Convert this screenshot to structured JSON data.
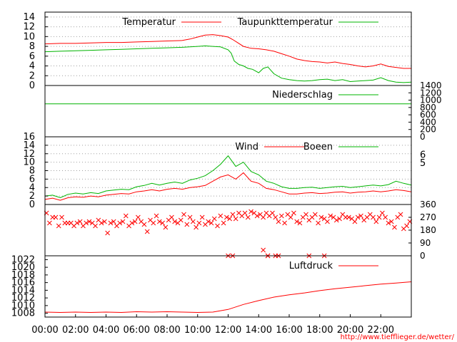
{
  "source_url": "http://www.tiefflieger.de/wetter/",
  "colors": {
    "red": "#ff0000",
    "green": "#00b400",
    "grid": "#a0a0a0",
    "frame": "#000000"
  },
  "chart_data": [
    {
      "type": "line",
      "panel": "temperature",
      "yticks": [
        "0",
        "2",
        "4",
        "6",
        "8",
        "10",
        "12",
        "14"
      ],
      "ylim": [
        0,
        15
      ],
      "grid": true,
      "legend_position": "top-right",
      "series": [
        {
          "name": "Temperatur",
          "color": "#ff0000",
          "x": [
            0,
            1,
            2,
            3,
            4,
            5,
            6,
            7,
            8,
            9,
            9.5,
            10,
            10.5,
            11,
            11.5,
            12,
            12.3,
            12.6,
            13,
            13.5,
            14,
            14.5,
            15,
            15.5,
            16,
            16.5,
            17,
            17.5,
            18,
            18.5,
            19,
            19.5,
            20,
            20.5,
            21,
            21.5,
            22,
            22.5,
            23,
            23.5,
            24
          ],
          "values": [
            8.5,
            8.6,
            8.6,
            8.7,
            8.8,
            8.8,
            8.9,
            9.0,
            9.1,
            9.2,
            9.5,
            9.9,
            10.3,
            10.4,
            10.2,
            9.9,
            9.4,
            8.8,
            8.0,
            7.6,
            7.5,
            7.3,
            7.0,
            6.5,
            6.0,
            5.4,
            5.1,
            4.9,
            4.8,
            4.6,
            4.8,
            4.5,
            4.3,
            4.0,
            3.8,
            4.0,
            4.4,
            3.9,
            3.7,
            3.5,
            3.5
          ]
        },
        {
          "name": "Taupunkttemperatur",
          "color": "#00b400",
          "x": [
            0,
            1,
            2,
            3,
            4,
            5,
            6,
            7,
            8,
            9,
            9.5,
            10,
            10.5,
            11,
            11.5,
            12,
            12.2,
            12.4,
            12.7,
            13,
            13.3,
            13.6,
            14,
            14.3,
            14.6,
            15,
            15.5,
            16,
            16.5,
            17,
            17.5,
            18,
            18.5,
            19,
            19.5,
            20,
            20.5,
            21,
            21.5,
            22,
            22.5,
            23,
            23.5,
            24
          ],
          "values": [
            6.9,
            7.0,
            7.1,
            7.2,
            7.3,
            7.4,
            7.5,
            7.6,
            7.7,
            7.8,
            7.9,
            8.0,
            8.1,
            8.0,
            7.9,
            7.3,
            6.6,
            5.0,
            4.3,
            4.0,
            3.5,
            3.3,
            2.6,
            3.5,
            3.8,
            2.4,
            1.5,
            1.2,
            1.0,
            0.9,
            1.0,
            1.2,
            1.3,
            1.0,
            1.2,
            0.8,
            0.9,
            1.0,
            1.1,
            1.6,
            1.0,
            0.7,
            0.6,
            0.7
          ]
        }
      ]
    },
    {
      "type": "line",
      "panel": "precipitation",
      "yticks": [
        "0",
        "200",
        "400",
        "600",
        "800",
        "1000",
        "1200",
        "1400"
      ],
      "ylim": [
        0,
        1400
      ],
      "grid": false,
      "legend_position": "top-right",
      "series": [
        {
          "name": "Niederschlag",
          "color": "#00b400",
          "x": [
            0,
            24
          ],
          "values": [
            900,
            900
          ]
        }
      ]
    },
    {
      "type": "line",
      "panel": "wind",
      "yticks": [
        "0",
        "2",
        "4",
        "6",
        "8",
        "10",
        "12",
        "14",
        "16"
      ],
      "ylim": [
        0,
        16
      ],
      "right_yticks": [
        "5",
        "6"
      ],
      "grid": true,
      "legend_position": "top-right",
      "series": [
        {
          "name": "Wind",
          "color": "#ff0000",
          "x": [
            0,
            0.5,
            1,
            1.5,
            2,
            2.5,
            3,
            3.5,
            4,
            4.5,
            5,
            5.5,
            6,
            6.5,
            7,
            7.5,
            8,
            8.5,
            9,
            9.5,
            10,
            10.5,
            11,
            11.5,
            12,
            12.5,
            13,
            13.5,
            14,
            14.5,
            15,
            15.5,
            16,
            16.5,
            17,
            17.5,
            18,
            18.5,
            19,
            19.5,
            20,
            20.5,
            21,
            21.5,
            22,
            22.5,
            23,
            23.5,
            24
          ],
          "values": [
            1.2,
            1.5,
            1.0,
            1.6,
            1.8,
            1.7,
            2.0,
            1.8,
            2.2,
            2.4,
            2.6,
            2.5,
            3.0,
            3.2,
            3.5,
            3.2,
            3.6,
            3.8,
            3.6,
            4.0,
            4.2,
            4.5,
            5.5,
            6.5,
            7.0,
            6.0,
            7.5,
            5.5,
            5.0,
            3.8,
            3.5,
            3.0,
            2.5,
            2.5,
            2.7,
            2.8,
            2.6,
            2.7,
            2.9,
            3.0,
            2.7,
            2.9,
            3.0,
            3.2,
            3.0,
            3.2,
            3.5,
            3.3,
            3.0
          ]
        },
        {
          "name": "Boeen",
          "color": "#00b400",
          "x": [
            0,
            0.5,
            1,
            1.5,
            2,
            2.5,
            3,
            3.5,
            4,
            4.5,
            5,
            5.5,
            6,
            6.5,
            7,
            7.5,
            8,
            8.5,
            9,
            9.5,
            10,
            10.5,
            11,
            11.5,
            12,
            12.5,
            13,
            13.5,
            14,
            14.5,
            15,
            15.5,
            16,
            16.5,
            17,
            17.5,
            18,
            18.5,
            19,
            19.5,
            20,
            20.5,
            21,
            21.5,
            22,
            22.5,
            23,
            23.5,
            24
          ],
          "values": [
            2.0,
            2.2,
            1.6,
            2.4,
            2.7,
            2.5,
            2.8,
            2.6,
            3.2,
            3.4,
            3.6,
            3.5,
            4.2,
            4.5,
            5.0,
            4.6,
            5.0,
            5.3,
            5.0,
            5.8,
            6.2,
            6.8,
            8.0,
            9.5,
            11.5,
            9.0,
            10.0,
            7.8,
            7.0,
            5.5,
            5.0,
            4.2,
            3.8,
            3.8,
            4.0,
            4.1,
            3.8,
            4.0,
            4.2,
            4.3,
            4.0,
            4.2,
            4.4,
            4.6,
            4.4,
            4.7,
            5.5,
            5.0,
            4.6
          ]
        }
      ]
    },
    {
      "type": "scatter",
      "panel": "wind_direction",
      "yticks": [
        "0",
        "90",
        "180",
        "270",
        "360"
      ],
      "ylim": [
        0,
        360
      ],
      "grid": false,
      "series": [
        {
          "name": "",
          "color": "#ff0000",
          "marker": "x",
          "x": [
            0.1,
            0.3,
            0.5,
            0.7,
            0.9,
            1.1,
            1.3,
            1.5,
            1.7,
            1.9,
            2.1,
            2.3,
            2.5,
            2.7,
            2.9,
            3.1,
            3.3,
            3.5,
            3.7,
            3.9,
            4.1,
            4.3,
            4.5,
            4.7,
            4.9,
            5.1,
            5.3,
            5.5,
            5.7,
            5.9,
            6.1,
            6.3,
            6.5,
            6.7,
            6.9,
            7.1,
            7.3,
            7.5,
            7.7,
            7.9,
            8.1,
            8.3,
            8.5,
            8.7,
            8.9,
            9.1,
            9.3,
            9.5,
            9.7,
            9.9,
            10.1,
            10.3,
            10.5,
            10.7,
            10.9,
            11.1,
            11.3,
            11.5,
            11.7,
            11.9,
            12.1,
            12.3,
            12.5,
            12.7,
            12.9,
            13.1,
            13.3,
            13.5,
            13.7,
            13.9,
            14.1,
            14.3,
            14.5,
            14.7,
            14.9,
            15.1,
            15.3,
            15.5,
            15.7,
            15.9,
            16.1,
            16.3,
            16.5,
            16.7,
            16.9,
            17.1,
            17.3,
            17.5,
            17.7,
            17.9,
            18.1,
            18.3,
            18.5,
            18.7,
            18.9,
            19.1,
            19.3,
            19.5,
            19.7,
            19.9,
            20.1,
            20.3,
            20.5,
            20.7,
            20.9,
            21.1,
            21.3,
            21.5,
            21.7,
            21.9,
            22.1,
            22.3,
            22.5,
            22.7,
            22.9,
            23.1,
            23.3,
            23.5,
            23.7,
            23.9,
            12.0,
            12.3,
            14.3,
            14.6,
            15.1,
            15.3,
            17.3,
            18.3,
            14.6
          ],
          "values": [
            300,
            230,
            270,
            270,
            210,
            270,
            230,
            230,
            230,
            210,
            230,
            240,
            210,
            230,
            240,
            230,
            210,
            250,
            230,
            240,
            160,
            230,
            240,
            210,
            230,
            240,
            280,
            210,
            230,
            240,
            270,
            240,
            220,
            170,
            250,
            230,
            280,
            240,
            230,
            200,
            250,
            270,
            240,
            230,
            250,
            290,
            220,
            270,
            240,
            200,
            230,
            270,
            220,
            240,
            230,
            260,
            210,
            280,
            230,
            270,
            260,
            290,
            260,
            300,
            280,
            300,
            270,
            310,
            300,
            280,
            290,
            270,
            300,
            280,
            300,
            270,
            240,
            280,
            230,
            290,
            270,
            300,
            240,
            230,
            270,
            290,
            250,
            270,
            290,
            230,
            270,
            260,
            240,
            280,
            270,
            250,
            260,
            290,
            270,
            270,
            260,
            240,
            270,
            280,
            250,
            270,
            290,
            270,
            240,
            270,
            300,
            270,
            230,
            240,
            200,
            270,
            290,
            190,
            210,
            240,
            0,
            0,
            40,
            0,
            0,
            0,
            0,
            0,
            0
          ]
        }
      ]
    },
    {
      "type": "line",
      "panel": "pressure",
      "yticks": [
        "1008",
        "1010",
        "1012",
        "1014",
        "1016",
        "1018",
        "1020",
        "1022"
      ],
      "ylim": [
        1007,
        1023
      ],
      "grid": false,
      "legend_position": "top-right",
      "xticks": [
        "00:00",
        "02:00",
        "04:00",
        "06:00",
        "08:00",
        "10:00",
        "12:00",
        "14:00",
        "16:00",
        "18:00",
        "20:00",
        "22:00"
      ],
      "xlim": [
        0,
        24
      ],
      "series": [
        {
          "name": "Luftdruck",
          "color": "#ff0000",
          "x": [
            0,
            1,
            2,
            3,
            4,
            5,
            6,
            7,
            8,
            9,
            10,
            11,
            12,
            13,
            14,
            15,
            16,
            17,
            18,
            19,
            20,
            21,
            22,
            23,
            24
          ],
          "values": [
            1008.3,
            1008.2,
            1008.3,
            1008.2,
            1008.3,
            1008.2,
            1008.4,
            1008.3,
            1008.4,
            1008.3,
            1008.2,
            1008.3,
            1009.0,
            1010.3,
            1011.3,
            1012.2,
            1012.8,
            1013.3,
            1013.9,
            1014.4,
            1014.8,
            1015.2,
            1015.6,
            1015.9,
            1016.2
          ]
        }
      ]
    }
  ]
}
